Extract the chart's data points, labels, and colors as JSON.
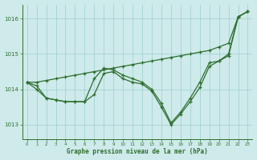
{
  "title": "Graphe pression niveau de la mer (hPa)",
  "bg_color": "#ceeaea",
  "grid_color": "#9ecece",
  "line_color": "#2d6e2d",
  "xlim": [
    -0.5,
    23.5
  ],
  "ylim": [
    1012.6,
    1016.4
  ],
  "yticks": [
    1013,
    1014,
    1015,
    1016
  ],
  "xticks": [
    0,
    1,
    2,
    3,
    4,
    5,
    6,
    7,
    8,
    9,
    10,
    11,
    12,
    13,
    14,
    15,
    16,
    17,
    18,
    19,
    20,
    21,
    22,
    23
  ],
  "line1_x": [
    0,
    1,
    2,
    3,
    4,
    5,
    6,
    7,
    8,
    9,
    10,
    11,
    12,
    13,
    14,
    15,
    16,
    17,
    18,
    19,
    20,
    21,
    22,
    23
  ],
  "line1_y": [
    1014.2,
    1014.2,
    1014.25,
    1014.3,
    1014.35,
    1014.4,
    1014.45,
    1014.5,
    1014.55,
    1014.6,
    1014.65,
    1014.7,
    1014.75,
    1014.8,
    1014.85,
    1014.9,
    1014.95,
    1015.0,
    1015.05,
    1015.1,
    1015.2,
    1015.3,
    1016.05,
    1016.2
  ],
  "line2_x": [
    0,
    1,
    2,
    3,
    4,
    5,
    6,
    7,
    8,
    9,
    10,
    11,
    12,
    13,
    14,
    15,
    16,
    17,
    18,
    19,
    20,
    21,
    22,
    23
  ],
  "line2_y": [
    1014.2,
    1014.0,
    1013.75,
    1013.7,
    1013.65,
    1013.65,
    1013.65,
    1014.3,
    1014.6,
    1014.55,
    1014.4,
    1014.3,
    1014.2,
    1014.0,
    1013.6,
    1013.05,
    1013.35,
    1013.75,
    1014.2,
    1014.75,
    1014.8,
    1015.0,
    1016.05,
    1016.2
  ],
  "line3_x": [
    0,
    1,
    2,
    3,
    4,
    5,
    6,
    7,
    8,
    9,
    10,
    11,
    12,
    13,
    14,
    15,
    16,
    17,
    18,
    19,
    20,
    21,
    22,
    23
  ],
  "line3_y": [
    1014.2,
    1014.1,
    1013.75,
    1013.7,
    1013.65,
    1013.65,
    1013.65,
    1013.85,
    1014.45,
    1014.5,
    1014.3,
    1014.2,
    1014.15,
    1013.95,
    1013.5,
    1013.0,
    1013.3,
    1013.65,
    1014.05,
    1014.65,
    1014.8,
    1014.95,
    1016.05,
    1016.2
  ]
}
